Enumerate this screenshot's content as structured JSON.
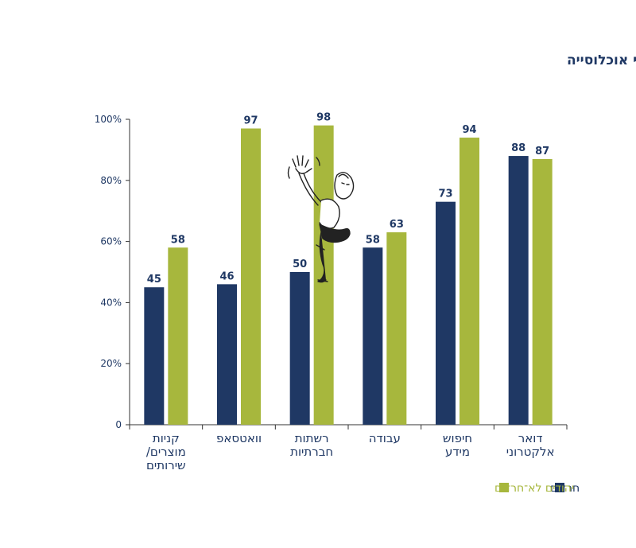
{
  "chart_data": {
    "type": "bar",
    "title": "סוגי השימוש העיקריים באינטרנט, לפי אוכלוסייה",
    "categories": [
      [
        "קניות",
        "מוצרים/",
        "שירותים"
      ],
      [
        "וואטסאפ"
      ],
      [
        "רשתות",
        "חברתיות"
      ],
      [
        "עבודה"
      ],
      [
        "חיפוש",
        "מידע"
      ],
      [
        "דואר",
        "אלקטרוני"
      ]
    ],
    "series": [
      {
        "name": "חרדים",
        "values": [
          45,
          46,
          50,
          58,
          73,
          88
        ],
        "color": "#1f3864"
      },
      {
        "name": "יהודים לא־חרדים",
        "values": [
          58,
          97,
          98,
          63,
          94,
          87
        ],
        "color": "#a7b73d"
      }
    ],
    "y_ticks": [
      "0",
      "20%",
      "40%",
      "60%",
      "80%",
      "100%"
    ],
    "ylim": [
      0,
      100
    ],
    "grid": false,
    "legend_position": "bottom-right"
  }
}
